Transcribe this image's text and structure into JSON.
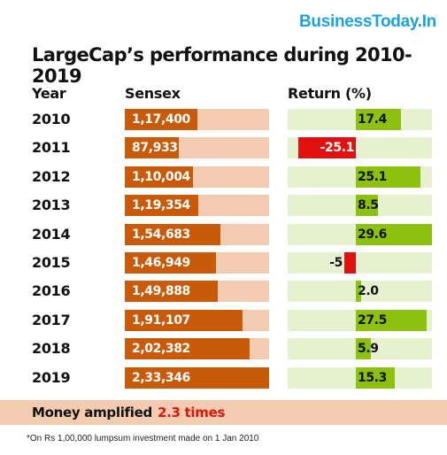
{
  "brand": "BusinessToday.In",
  "title": "LargeCap’s performance during 2010-2019",
  "headers": {
    "year": "Year",
    "sensex": "Sensex",
    "return": "Return (%)"
  },
  "chart_data": {
    "type": "bar",
    "categories": [
      "2010",
      "2011",
      "2012",
      "2013",
      "2014",
      "2015",
      "2016",
      "2017",
      "2018",
      "2019"
    ],
    "series": [
      {
        "name": "Sensex",
        "values": [
          117400,
          87933,
          110004,
          119354,
          154683,
          146949,
          149888,
          191107,
          202382,
          233346
        ],
        "labels": [
          "1,17,400",
          "87,933",
          "1,10,004",
          "1,19,354",
          "1,54,683",
          "1,46,949",
          "1,49,888",
          "1,91,107",
          "2,02,382",
          "2,33,346"
        ]
      },
      {
        "name": "Return (%)",
        "values": [
          17.4,
          -25.1,
          25.1,
          8.5,
          29.6,
          -5,
          2.0,
          27.5,
          5.9,
          15.3
        ],
        "labels": [
          "17.4",
          "-25.1",
          "25.1",
          "8.5",
          "29.6",
          "-5",
          "2.0",
          "27.5",
          "5.9",
          "15.3"
        ]
      }
    ],
    "colors": {
      "sensex_bar": "#c95a0a",
      "sensex_track": "#f2cbb0",
      "return_positive": "#8cc10f",
      "return_negative": "#e31010",
      "return_track": "#e6f2cf"
    }
  },
  "footer": {
    "label": "Money amplified",
    "value": "2.3 times"
  },
  "note": "*On Rs 1,00,000 lumpsum investment made on 1 Jan 2010"
}
